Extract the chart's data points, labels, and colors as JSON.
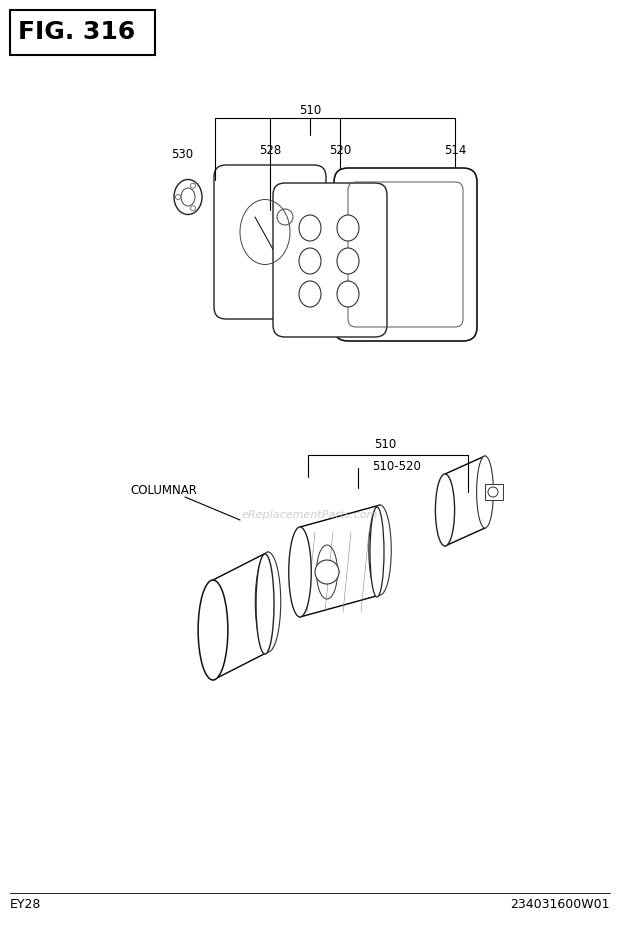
{
  "title": "FIG. 316",
  "bg_color": "#ffffff",
  "border_color": "#000000",
  "text_color": "#000000",
  "watermark": "eReplacementParts.com",
  "footer_left": "EY28",
  "footer_right": "234031600W01",
  "figsize": [
    6.2,
    9.26
  ],
  "dpi": 100
}
